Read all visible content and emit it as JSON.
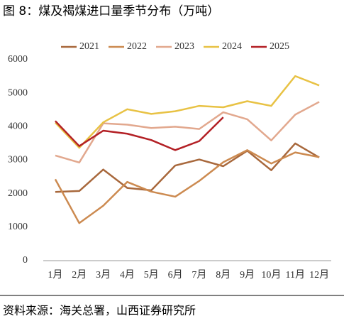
{
  "chart_data": {
    "type": "line",
    "title": "图 8：煤及褐煤进口量季节分布（万吨）",
    "source": "资料来源：海关总署，山西证券研究所",
    "categories": [
      "1月",
      "2月",
      "3月",
      "4月",
      "5月",
      "6月",
      "7月",
      "8月",
      "9月",
      "10月",
      "11月",
      "12月"
    ],
    "series": [
      {
        "name": "2021",
        "color": "#a8683c",
        "values": [
          2050,
          2080,
          2720,
          2170,
          2100,
          2840,
          3020,
          2820,
          3280,
          2700,
          3500,
          3080
        ]
      },
      {
        "name": "2022",
        "color": "#cc8a50",
        "values": [
          2430,
          1120,
          1640,
          2350,
          2060,
          1910,
          2380,
          2940,
          3300,
          2900,
          3230,
          3090
        ]
      },
      {
        "name": "2023",
        "color": "#e2a88e",
        "values": [
          3140,
          2930,
          4100,
          4060,
          3960,
          4000,
          3930,
          4430,
          4220,
          3590,
          4360,
          4740
        ]
      },
      {
        "name": "2024",
        "color": "#e8c244",
        "values": [
          4120,
          3370,
          4130,
          4520,
          4380,
          4460,
          4620,
          4580,
          4760,
          4620,
          5510,
          5230
        ]
      },
      {
        "name": "2025",
        "color": "#b32025",
        "values": [
          4170,
          3420,
          3880,
          3790,
          3600,
          3300,
          3570,
          4280,
          null,
          null,
          null,
          null
        ]
      }
    ],
    "ylim": [
      0,
      6000
    ],
    "yticks": [
      0,
      1000,
      2000,
      3000,
      4000,
      5000,
      6000
    ],
    "legend": "top"
  }
}
